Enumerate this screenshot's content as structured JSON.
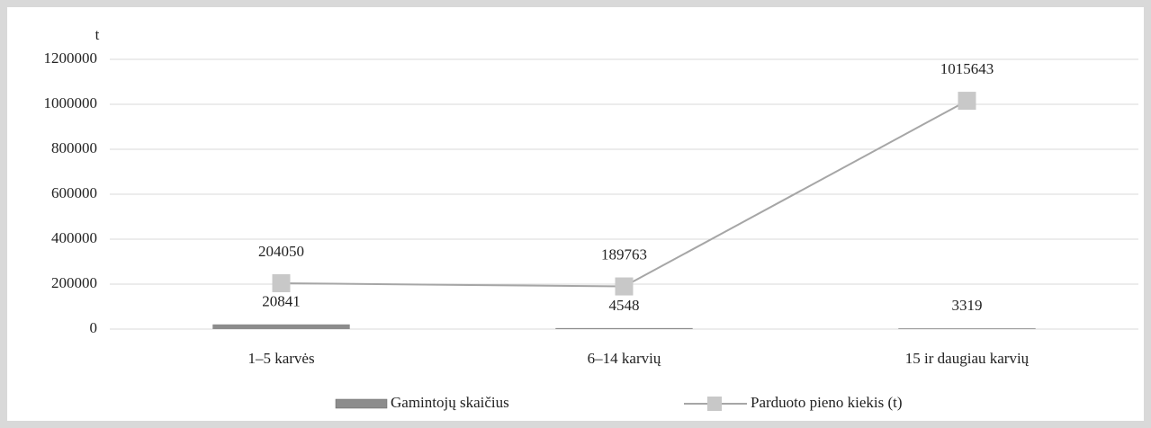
{
  "chart_data": {
    "type": "bar",
    "y_label": "t",
    "categories": [
      "1–5 karvės",
      "6–14 karvių",
      "15 ir daugiau karvių"
    ],
    "series": [
      {
        "name": "Gamintojų skaičius",
        "type": "bar",
        "color": "#8c8c8c",
        "values": [
          20841,
          4548,
          3319
        ]
      },
      {
        "name": "Parduoto pieno kiekis (t)",
        "type": "line",
        "color": "#a6a6a6",
        "marker_color": "#c8c8c8",
        "values": [
          204050,
          189763,
          1015643
        ]
      }
    ],
    "ylim": [
      0,
      1200000
    ],
    "yticks": [
      0,
      200000,
      400000,
      600000,
      800000,
      1000000,
      1200000
    ],
    "grid": true,
    "legend": "bottom"
  }
}
